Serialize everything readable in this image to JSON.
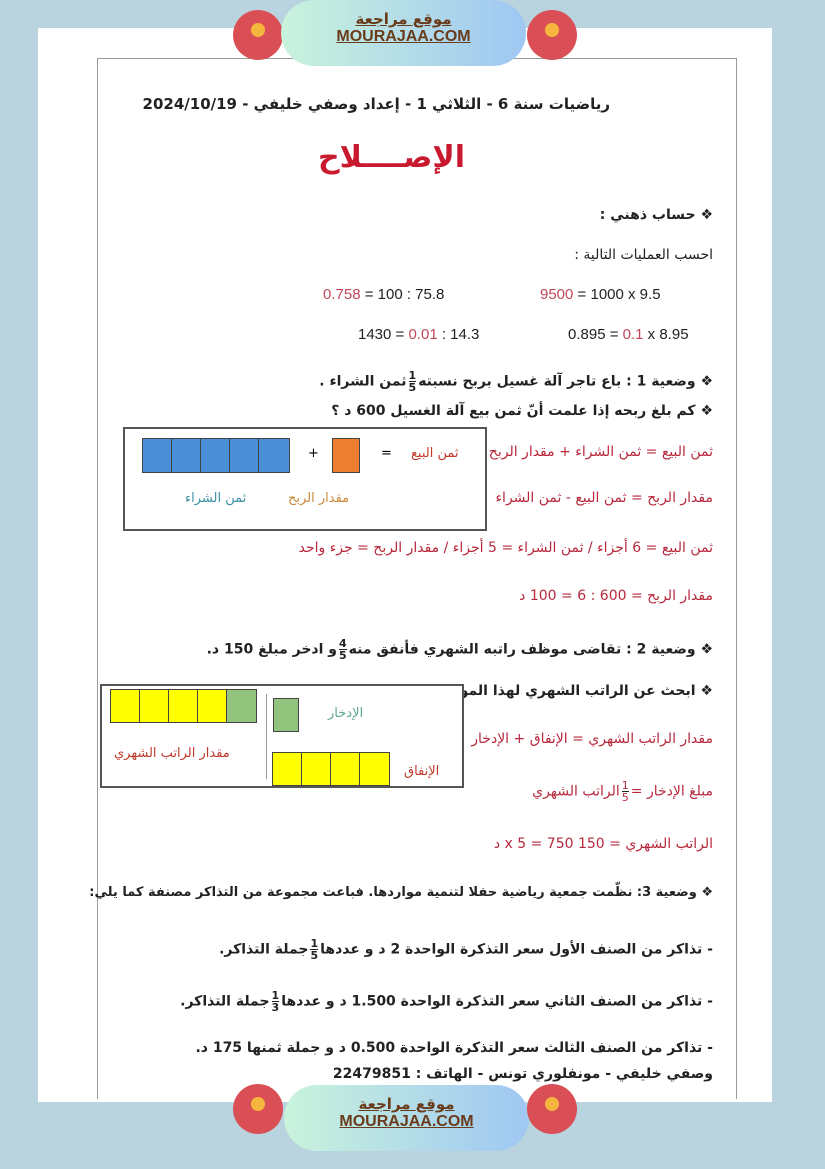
{
  "site": {
    "name_ar": "موقع مراجعة",
    "name_en": "MOURAJAA.COM"
  },
  "header": "رياضيات سنة 6 - الثلاثي 1 - إعداد وصفي خليفي - 2024/10/19",
  "title": "الإصــــلاح",
  "mental": {
    "heading": "❖ حساب ذهني :",
    "instruction": "احسب العمليات التالية :",
    "ops": [
      {
        "result": "9500",
        "expr": "= 1000 x 9.5"
      },
      {
        "result": "0.758",
        "expr": "= 100 : 75.8"
      },
      {
        "pre": "0.895 =",
        "hl": "0.1",
        "post": "x 8.95"
      },
      {
        "pre": "1430 =",
        "hl": "0.01",
        "post": ": 14.3"
      }
    ]
  },
  "s1": {
    "q1a": "❖ وضعية 1 : باع تاجر آلة غسيل بربح نسبته",
    "q1b": "ثمن الشراء .",
    "frac": [
      "1",
      "5"
    ],
    "q2": "❖ كم بلغ ربحه إذا علمت أنّ ثمن بيع آلة الغسيل 600 د ؟",
    "answers": [
      "ثمن البيع = ثمن الشراء + مقدار الربح",
      "مقدار الربح = ثمن البيع - ثمن الشراء",
      "ثمن البيع = 6 أجزاء / ثمن الشراء = 5 أجزاء / مقدار الربح = جزء واحد",
      "مقدار الربح = 600 : 6 = 100 د"
    ],
    "diagram": {
      "sell": "ثمن البيع",
      "eq": "=",
      "plus": "+",
      "profit": "مقدار الربح",
      "buy": "ثمن الشراء",
      "colors": {
        "buy": "#4a8fd6",
        "profit": "#ed7d31"
      }
    }
  },
  "s2": {
    "q1a": "❖ وضعية 2 : تقاضى موظف راتبه الشهري فأنفق منه",
    "q1b": "و ادخر مبلغ 150 د.",
    "frac": [
      "4",
      "5"
    ],
    "q2": "❖ ابحث عن الراتب الشهري لهذا الموظف",
    "a1": "مقدار الراتب الشهري = الإنفاق + الإدخار",
    "a2a": "مبلغ الإدخار =",
    "a2b": "الراتب الشهري",
    "a2frac": [
      "1",
      "5"
    ],
    "a3": "الراتب الشهري = 150 x 5 = 750 د",
    "diagram": {
      "salary": "مقدار الراتب الشهري",
      "saving": "الإدخار",
      "spending": "الإنفاق",
      "colors": {
        "spend": "#ffff00",
        "save": "#93c47d"
      }
    }
  },
  "s3": {
    "intro": "❖ وضعية 3: نظّمت جمعية رياضية حفلا لتنمية مواردها. فباعت مجموعة من التذاكر مصنفة كما يلي:",
    "l1a": "- تذاكر من الصنف الأول سعر التذكرة الواحدة 2 د و عددها",
    "l1b": "جملة التذاكر.",
    "f1": [
      "1",
      "5"
    ],
    "l2a": "- تذاكر من الصنف الثاني سعر التذكرة الواحدة 1.500 د و عددها",
    "l2b": "جملة التذاكر.",
    "f2": [
      "1",
      "3"
    ],
    "l3": "- تذاكر من الصنف الثالث سعر التذكرة الواحدة 0.500 د و جملة ثمنها 175 د."
  },
  "footer": "وصفي خليفي - مونفلوري تونس - الهاتف : 22479851"
}
